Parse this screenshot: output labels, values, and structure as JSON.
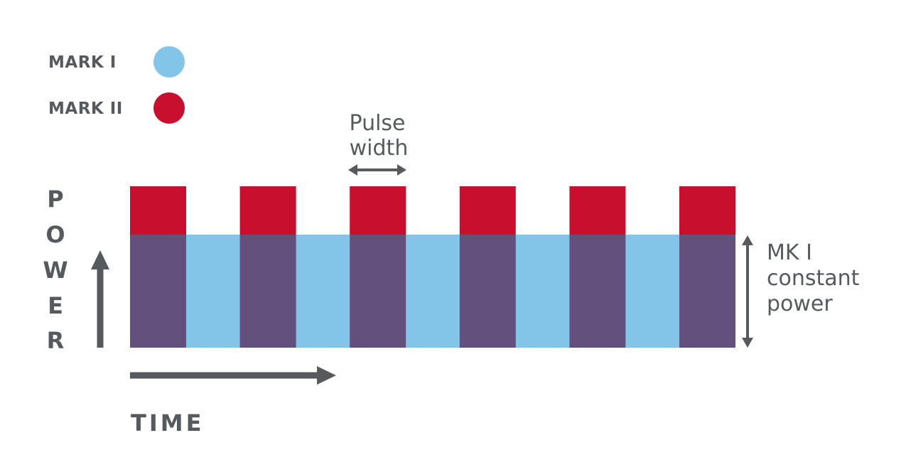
{
  "legend": [
    {
      "label": "MARK I",
      "color": "#82c5e8"
    },
    {
      "label": "MARK II",
      "color": "#c8102e"
    }
  ],
  "overlap_color": "#63507d",
  "axis_color": "#555a5f",
  "annotations": {
    "pulse_width": [
      "Pulse",
      "width"
    ],
    "constant_power": [
      "MK I",
      "constant",
      "power"
    ]
  },
  "axes": {
    "y_title_letters": [
      "P",
      "O",
      "W",
      "E",
      "R"
    ],
    "x_title": "TIME"
  },
  "pulse_count": 6
}
